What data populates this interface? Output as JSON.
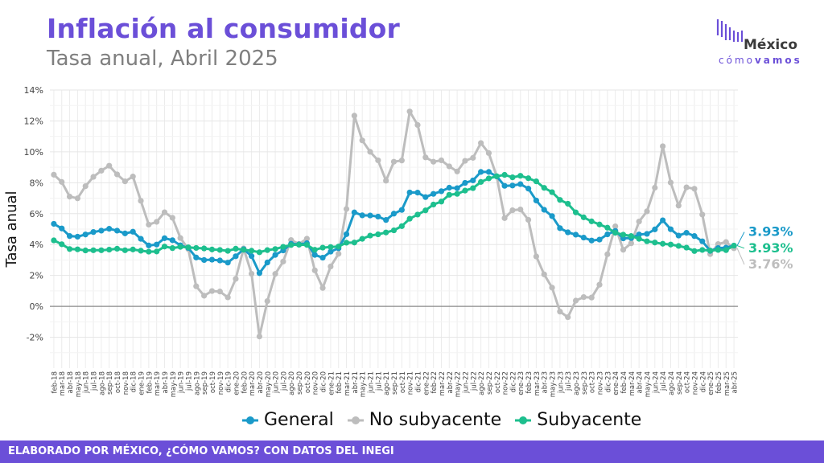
{
  "header": {
    "title": "Inflación al consumidor",
    "subtitle": "Tasa anual, Abril 2025"
  },
  "logo": {
    "line1": "México",
    "line2a": "cómo",
    "line2b": "vamos"
  },
  "footer": {
    "text": "ELABORADO POR MÉXICO, ¿CÓMO VAMOS? CON DATOS DEL INEGI"
  },
  "colors": {
    "general": "#1a9ac9",
    "no_subyacente": "#bdbdbd",
    "subyacente": "#1dbf8e",
    "brand": "#6b4fd8"
  },
  "chart_data": {
    "type": "line",
    "ylabel": "Tasa anual",
    "ylim": [
      -4,
      14
    ],
    "yticks": [
      -2,
      0,
      2,
      4,
      6,
      8,
      10,
      12,
      14
    ],
    "ytick_labels": [
      "-2%",
      "0%",
      "2%",
      "4%",
      "6%",
      "8%",
      "10%",
      "12%",
      "14%"
    ],
    "grid": true,
    "legend_position": "bottom",
    "x": [
      "feb-18",
      "mar-18",
      "abr-18",
      "may-18",
      "jun-18",
      "jul-18",
      "ago-18",
      "sep-18",
      "oct-18",
      "nov-18",
      "dic-18",
      "ene-19",
      "feb-19",
      "mar-19",
      "abr-19",
      "may-19",
      "jun-19",
      "jul-19",
      "ago-19",
      "sep-19",
      "oct-19",
      "nov-19",
      "dic-19",
      "ene-20",
      "feb-20",
      "mar-20",
      "abr-20",
      "may-20",
      "jun-20",
      "jul-20",
      "ago-20",
      "sep-20",
      "oct-20",
      "nov-20",
      "dic-20",
      "ene-21",
      "feb-21",
      "mar-21",
      "abr-21",
      "may-21",
      "jun-21",
      "jul-21",
      "ago-21",
      "sep-21",
      "oct-21",
      "nov-21",
      "dic-21",
      "ene-22",
      "feb-22",
      "mar-22",
      "abr-22",
      "may-22",
      "jun-22",
      "jul-22",
      "ago-22",
      "sep-22",
      "oct-22",
      "nov-22",
      "dic-22",
      "ene-23",
      "feb-23",
      "mar-23",
      "abr-23",
      "may-23",
      "jun-23",
      "jul-23",
      "ago-23",
      "sep-23",
      "oct-23",
      "nov-23",
      "dic-23",
      "ene-24",
      "feb-24",
      "mar-24",
      "abr-24",
      "may-24",
      "jun-24",
      "jul-24",
      "ago-24",
      "sep-24",
      "oct-24",
      "nov-24",
      "dic-24",
      "ene-25",
      "feb-25",
      "mar-25",
      "abr-25"
    ],
    "series": [
      {
        "name": "General",
        "color": "#1a9ac9",
        "end_label": "3.93%",
        "values": [
          5.34,
          5.04,
          4.55,
          4.51,
          4.65,
          4.81,
          4.9,
          5.02,
          4.9,
          4.72,
          4.83,
          4.37,
          3.94,
          4.0,
          4.41,
          4.28,
          3.95,
          3.78,
          3.16,
          3.0,
          3.02,
          2.97,
          2.83,
          3.24,
          3.7,
          3.25,
          2.15,
          2.84,
          3.33,
          3.62,
          4.05,
          4.01,
          4.09,
          3.33,
          3.15,
          3.54,
          3.76,
          4.67,
          6.08,
          5.89,
          5.88,
          5.81,
          5.59,
          6.0,
          6.24,
          7.37,
          7.36,
          7.07,
          7.28,
          7.45,
          7.68,
          7.65,
          7.99,
          8.15,
          8.7,
          8.7,
          8.41,
          7.8,
          7.82,
          7.91,
          7.62,
          6.85,
          6.25,
          5.84,
          5.06,
          4.79,
          4.64,
          4.45,
          4.26,
          4.32,
          4.66,
          4.88,
          4.4,
          4.42,
          4.65,
          4.69,
          4.98,
          5.57,
          4.99,
          4.58,
          4.76,
          4.55,
          4.21,
          3.59,
          3.77,
          3.8,
          3.93
        ]
      },
      {
        "name": "No subyacente",
        "color": "#bdbdbd",
        "end_label": "3.76%",
        "values": [
          8.52,
          8.05,
          7.1,
          6.99,
          7.78,
          8.38,
          8.78,
          9.1,
          8.54,
          8.09,
          8.4,
          6.83,
          5.29,
          5.47,
          6.09,
          5.73,
          4.42,
          3.71,
          1.3,
          0.69,
          0.99,
          0.96,
          0.58,
          1.78,
          3.75,
          2.11,
          -1.95,
          0.34,
          2.1,
          2.9,
          4.29,
          4.04,
          4.38,
          2.33,
          1.19,
          2.58,
          3.4,
          6.3,
          12.34,
          10.74,
          10.0,
          9.45,
          8.13,
          9.36,
          9.44,
          12.61,
          11.74,
          9.64,
          9.36,
          9.45,
          9.06,
          8.73,
          9.42,
          9.61,
          10.57,
          9.92,
          8.41,
          5.71,
          6.22,
          6.27,
          5.6,
          3.23,
          2.07,
          1.21,
          -0.34,
          -0.7,
          0.37,
          0.6,
          0.57,
          1.4,
          3.37,
          5.18,
          3.66,
          4.08,
          5.49,
          6.15,
          7.68,
          10.36,
          8.01,
          6.52,
          7.7,
          7.61,
          5.94,
          3.38,
          4.03,
          4.16,
          3.76
        ]
      },
      {
        "name": "Subyacente",
        "color": "#1dbf8e",
        "end_label": "3.93%",
        "values": [
          4.27,
          4.02,
          3.71,
          3.69,
          3.62,
          3.63,
          3.63,
          3.67,
          3.73,
          3.63,
          3.68,
          3.6,
          3.54,
          3.55,
          3.87,
          3.77,
          3.85,
          3.82,
          3.78,
          3.75,
          3.68,
          3.65,
          3.59,
          3.73,
          3.66,
          3.6,
          3.5,
          3.64,
          3.71,
          3.85,
          3.97,
          3.99,
          3.98,
          3.66,
          3.8,
          3.84,
          3.87,
          4.12,
          4.13,
          4.37,
          4.58,
          4.66,
          4.78,
          4.92,
          5.19,
          5.67,
          5.94,
          6.21,
          6.59,
          6.78,
          7.22,
          7.28,
          7.49,
          7.65,
          8.05,
          8.28,
          8.42,
          8.51,
          8.35,
          8.45,
          8.29,
          8.09,
          7.67,
          7.39,
          6.89,
          6.64,
          6.08,
          5.76,
          5.5,
          5.3,
          5.09,
          4.76,
          4.64,
          4.55,
          4.37,
          4.21,
          4.13,
          4.05,
          4.0,
          3.91,
          3.8,
          3.58,
          3.65,
          3.61,
          3.65,
          3.64,
          3.93
        ]
      }
    ]
  }
}
